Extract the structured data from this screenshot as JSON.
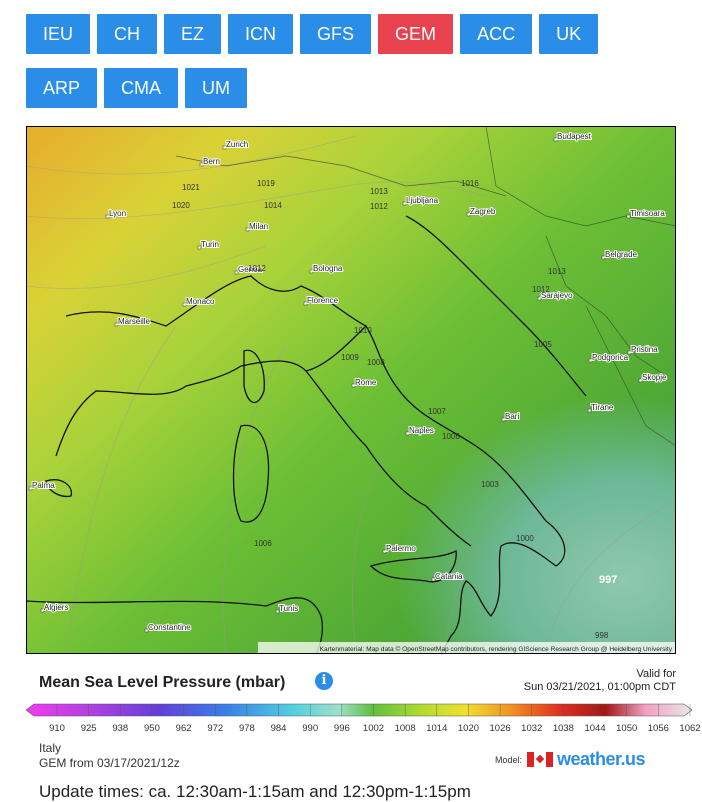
{
  "nav": {
    "buttons": [
      "IEU",
      "CH",
      "EZ",
      "ICN",
      "GFS",
      "GEM",
      "ACC",
      "UK",
      "ARP",
      "CMA",
      "UM"
    ],
    "active_index": 5
  },
  "map": {
    "cities": [
      "Bern",
      "Zurich",
      "Lyon",
      "Milan",
      "Turin",
      "Genoa",
      "Bologna",
      "Monaco",
      "Marseille",
      "Florence",
      "Rome",
      "Naples",
      "Bari",
      "Palermo",
      "Catania",
      "Tunis",
      "Algiers",
      "Constantine",
      "Palma",
      "Ljubljana",
      "Zagreb",
      "Budapest",
      "Timisoara",
      "Belgrade",
      "Sarajevo",
      "Podgorica",
      "Pristina",
      "Skopje",
      "Tirane"
    ],
    "isobars": [
      1021,
      1020,
      1019,
      1014,
      1013,
      1012,
      1012,
      1013,
      1012,
      1010,
      1009,
      1008,
      1007,
      1006,
      1006,
      1005,
      1003,
      1000,
      997,
      998,
      1016
    ],
    "attribution": "Kartenmaterial: Map data © OpenStreetMap contributors, rendering GIScience Research Group @ Heidelberg University"
  },
  "legend": {
    "title": "Mean Sea Level Pressure (mbar)",
    "valid_label": "Valid for",
    "valid_time": "Sun 03/21/2021, 01:00pm CDT",
    "scale": [
      910,
      925,
      938,
      950,
      962,
      972,
      978,
      984,
      990,
      996,
      1002,
      1008,
      1014,
      1020,
      1026,
      1032,
      1038,
      1044,
      1050,
      1056,
      1062
    ]
  },
  "footer": {
    "region": "Italy",
    "run": "GEM from 03/17/2021/12z",
    "model_label": "Model:",
    "brand": "weather.us",
    "update_times": "Update times: ca. 12:30am-1:15am and 12:30pm-1:15pm"
  }
}
